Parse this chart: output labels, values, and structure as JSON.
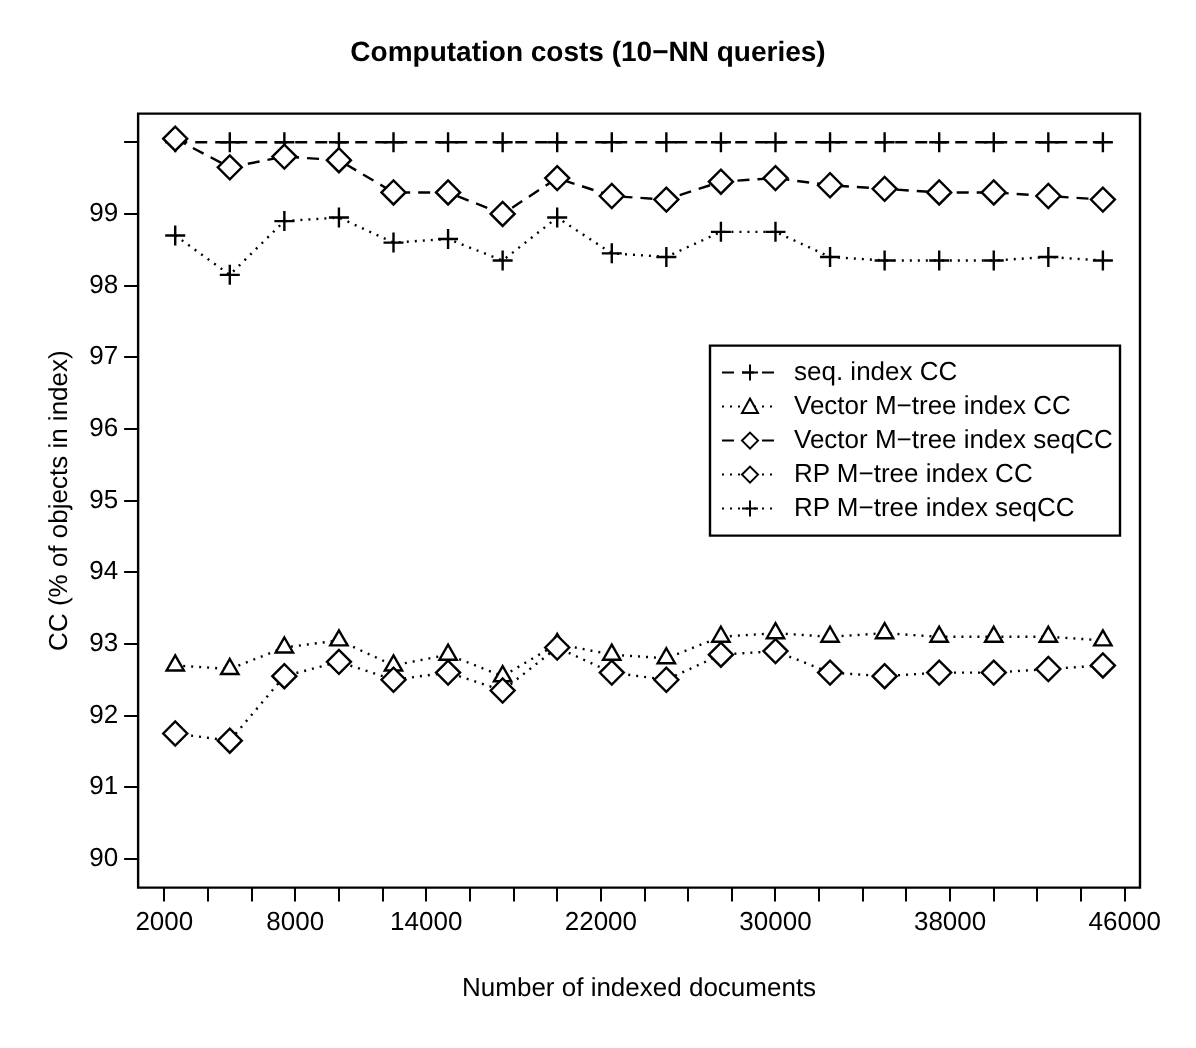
{
  "chart_data": {
    "type": "line",
    "title": "Computation costs (10−NN queries)",
    "xlabel": "Number of indexed documents",
    "ylabel": "CC (% of objects in index)",
    "x": [
      2500,
      5000,
      7500,
      10000,
      12500,
      15000,
      17500,
      20000,
      22500,
      25000,
      27500,
      30000,
      32500,
      35000,
      37500,
      40000,
      42500,
      45000
    ],
    "xlim": [
      800,
      46700
    ],
    "xticks": [
      2000,
      {
        "value": 4000,
        "label": null
      },
      {
        "value": 6000,
        "label": null
      },
      8000,
      {
        "value": 10000,
        "label": null
      },
      {
        "value": 12000,
        "label": null
      },
      14000,
      {
        "value": 16000,
        "label": null
      },
      {
        "value": 18000,
        "label": null
      },
      {
        "value": 20000,
        "label": null
      },
      22000,
      {
        "value": 24000,
        "label": null
      },
      {
        "value": 26000,
        "label": null
      },
      {
        "value": 28000,
        "label": null
      },
      30000,
      {
        "value": 32000,
        "label": null
      },
      {
        "value": 34000,
        "label": null
      },
      {
        "value": 36000,
        "label": null
      },
      38000,
      {
        "value": 40000,
        "label": null
      },
      {
        "value": 42000,
        "label": null
      },
      {
        "value": 44000,
        "label": null
      },
      46000
    ],
    "ylim": [
      89.6,
      100.4
    ],
    "yticks": [
      90,
      91,
      92,
      93,
      94,
      95,
      96,
      97,
      98,
      99,
      {
        "value": 100,
        "label": null
      }
    ],
    "grid": false,
    "legend": "right",
    "series": [
      {
        "name": "seq. index CC",
        "color": "#000000",
        "marker": "cross",
        "line_style": "dashed",
        "values": [
          100,
          100,
          100,
          100,
          100,
          100,
          100,
          100,
          100,
          100,
          100,
          100,
          100,
          100,
          100,
          100,
          100,
          100
        ]
      },
      {
        "name": "Vector M−tree index CC",
        "color": "#000000",
        "marker": "triangle",
        "line_style": "dotted",
        "values": [
          92.7,
          92.65,
          92.95,
          93.05,
          92.7,
          92.85,
          92.55,
          93.0,
          92.85,
          92.8,
          93.1,
          93.15,
          93.1,
          93.15,
          93.1,
          93.1,
          93.1,
          93.05
        ]
      },
      {
        "name": "Vector M−tree index seqCC",
        "color": "#000000",
        "marker": "diamond",
        "line_style": "dashed",
        "values": [
          100.05,
          99.65,
          99.8,
          99.75,
          99.3,
          99.3,
          99.0,
          99.5,
          99.25,
          99.2,
          99.45,
          99.5,
          99.4,
          99.35,
          99.3,
          99.3,
          99.25,
          99.2
        ]
      },
      {
        "name": "RP M−tree index CC",
        "color": "#000000",
        "marker": "diamond",
        "line_style": "dotted",
        "values": [
          91.75,
          91.65,
          92.55,
          92.75,
          92.5,
          92.6,
          92.35,
          92.95,
          92.6,
          92.5,
          92.85,
          92.9,
          92.6,
          92.55,
          92.6,
          92.6,
          92.65,
          92.7
        ]
      },
      {
        "name": "RP M−tree index seqCC",
        "color": "#000000",
        "marker": "cross",
        "line_style": "dotted",
        "values": [
          98.7,
          98.15,
          98.9,
          98.95,
          98.6,
          98.65,
          98.35,
          98.95,
          98.45,
          98.4,
          98.75,
          98.75,
          98.4,
          98.35,
          98.35,
          98.35,
          98.4,
          98.35
        ]
      }
    ]
  }
}
